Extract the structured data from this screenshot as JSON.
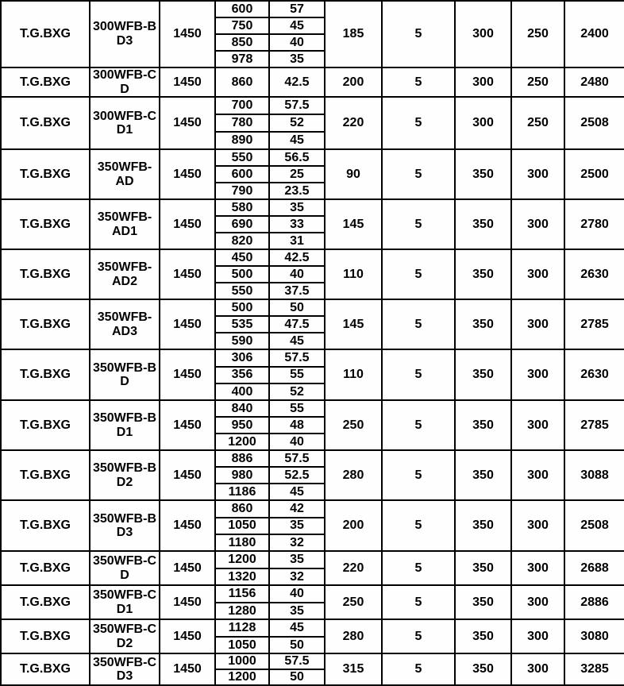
{
  "chart_data": {
    "type": "table",
    "columns": [
      "brand",
      "model",
      "speed",
      "flow",
      "head",
      "power",
      "col7",
      "col8",
      "col9",
      "price"
    ],
    "grid_color": "#000000",
    "text_color": "#000000",
    "background_color": "#ffffff",
    "rows": [
      {
        "brand": "T.G.BXG",
        "model": "300WFB-B\nD3",
        "speed": "1450",
        "flow_head": [
          [
            "600",
            "57"
          ],
          [
            "750",
            "45"
          ],
          [
            "850",
            "40"
          ],
          [
            "978",
            "35"
          ]
        ],
        "power": "185",
        "col7": "5",
        "col8": "300",
        "col9": "250",
        "price": "2400"
      },
      {
        "brand": "T.G.BXG",
        "model": "300WFB-C\nD",
        "speed": "1450",
        "flow_head": [
          [
            "860",
            "42.5"
          ]
        ],
        "power": "200",
        "col7": "5",
        "col8": "300",
        "col9": "250",
        "price": "2480"
      },
      {
        "brand": "T.G.BXG",
        "model": "300WFB-C\nD1",
        "speed": "1450",
        "flow_head": [
          [
            "700",
            "57.5"
          ],
          [
            "780",
            "52"
          ],
          [
            "890",
            "45"
          ]
        ],
        "power": "220",
        "col7": "5",
        "col8": "300",
        "col9": "250",
        "price": "2508"
      },
      {
        "brand": "T.G.BXG",
        "model": "350WFB-\nAD",
        "speed": "1450",
        "flow_head": [
          [
            "550",
            "56.5"
          ],
          [
            "600",
            "25"
          ],
          [
            "790",
            "23.5"
          ]
        ],
        "power": "90",
        "col7": "5",
        "col8": "350",
        "col9": "300",
        "price": "2500"
      },
      {
        "brand": "T.G.BXG",
        "model": "350WFB-\nAD1",
        "speed": "1450",
        "flow_head": [
          [
            "580",
            "35"
          ],
          [
            "690",
            "33"
          ],
          [
            "820",
            "31"
          ]
        ],
        "power": "145",
        "col7": "5",
        "col8": "350",
        "col9": "300",
        "price": "2780"
      },
      {
        "brand": "T.G.BXG",
        "model": "350WFB-\nAD2",
        "speed": "1450",
        "flow_head": [
          [
            "450",
            "42.5"
          ],
          [
            "500",
            "40"
          ],
          [
            "550",
            "37.5"
          ]
        ],
        "power": "110",
        "col7": "5",
        "col8": "350",
        "col9": "300",
        "price": "2630"
      },
      {
        "brand": "T.G.BXG",
        "model": "350WFB-\nAD3",
        "speed": "1450",
        "flow_head": [
          [
            "500",
            "50"
          ],
          [
            "535",
            "47.5"
          ],
          [
            "590",
            "45"
          ]
        ],
        "power": "145",
        "col7": "5",
        "col8": "350",
        "col9": "300",
        "price": "2785"
      },
      {
        "brand": "T.G.BXG",
        "model": "350WFB-B\nD",
        "speed": "1450",
        "flow_head": [
          [
            "306",
            "57.5"
          ],
          [
            "356",
            "55"
          ],
          [
            "400",
            "52"
          ]
        ],
        "power": "110",
        "col7": "5",
        "col8": "350",
        "col9": "300",
        "price": "2630"
      },
      {
        "brand": "T.G.BXG",
        "model": "350WFB-B\nD1",
        "speed": "1450",
        "flow_head": [
          [
            "840",
            "55"
          ],
          [
            "950",
            "48"
          ],
          [
            "1200",
            "40"
          ]
        ],
        "power": "250",
        "col7": "5",
        "col8": "350",
        "col9": "300",
        "price": "2785"
      },
      {
        "brand": "T.G.BXG",
        "model": "350WFB-B\nD2",
        "speed": "1450",
        "flow_head": [
          [
            "886",
            "57.5"
          ],
          [
            "980",
            "52.5"
          ],
          [
            "1186",
            "45"
          ]
        ],
        "power": "280",
        "col7": "5",
        "col8": "350",
        "col9": "300",
        "price": "3088"
      },
      {
        "brand": "T.G.BXG",
        "model": "350WFB-B\nD3",
        "speed": "1450",
        "flow_head": [
          [
            "860",
            "42"
          ],
          [
            "1050",
            "35"
          ],
          [
            "1180",
            "32"
          ]
        ],
        "power": "200",
        "col7": "5",
        "col8": "350",
        "col9": "300",
        "price": "2508"
      },
      {
        "brand": "T.G.BXG",
        "model": "350WFB-C\nD",
        "speed": "1450",
        "flow_head": [
          [
            "1200",
            "35"
          ],
          [
            "1320",
            "32"
          ]
        ],
        "power": "220",
        "col7": "5",
        "col8": "350",
        "col9": "300",
        "price": "2688"
      },
      {
        "brand": "T.G.BXG",
        "model": "350WFB-C\nD1",
        "speed": "1450",
        "flow_head": [
          [
            "1156",
            "40"
          ],
          [
            "1280",
            "35"
          ]
        ],
        "power": "250",
        "col7": "5",
        "col8": "350",
        "col9": "300",
        "price": "2886"
      },
      {
        "brand": "T.G.BXG",
        "model": "350WFB-C\nD2",
        "speed": "1450",
        "flow_head": [
          [
            "1128",
            "45"
          ],
          [
            "1050",
            "50"
          ]
        ],
        "power": "280",
        "col7": "5",
        "col8": "350",
        "col9": "300",
        "price": "3080"
      },
      {
        "brand": "T.G.BXG",
        "model": "350WFB-C\nD3",
        "speed": "1450",
        "flow_head": [
          [
            "1000",
            "57.5"
          ],
          [
            "1200",
            "50"
          ]
        ],
        "power": "315",
        "col7": "5",
        "col8": "350",
        "col9": "300",
        "price": "3285"
      }
    ]
  }
}
